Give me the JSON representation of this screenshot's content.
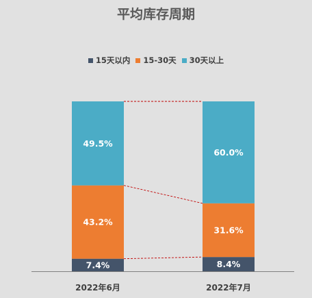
{
  "title": "平均库存周期",
  "colors": {
    "15天以内": "#44546a",
    "15-30天": "#ed7d31",
    "30天以上": "#4bacc6",
    "connector": "#c00000",
    "axis": "#7f7f7f",
    "label_text": "#ffffff",
    "category_text": "#404040"
  },
  "chart_data": {
    "type": "bar",
    "stacked": "percent",
    "title": "平均库存周期",
    "categories": [
      "2022年6月",
      "2022年7月"
    ],
    "series": [
      {
        "name": "15天以内",
        "values": [
          7.4,
          8.4
        ],
        "labels": [
          "7.4%",
          "8.4%"
        ]
      },
      {
        "name": "15-30天",
        "values": [
          43.2,
          31.6
        ],
        "labels": [
          "43.2%",
          "31.6%"
        ]
      },
      {
        "name": "30天以上",
        "values": [
          49.5,
          60.0
        ],
        "labels": [
          "49.5%",
          "60.0%"
        ]
      }
    ],
    "ylim": [
      0,
      100
    ],
    "legend": "top-center",
    "series_lines": true,
    "grid": false
  }
}
